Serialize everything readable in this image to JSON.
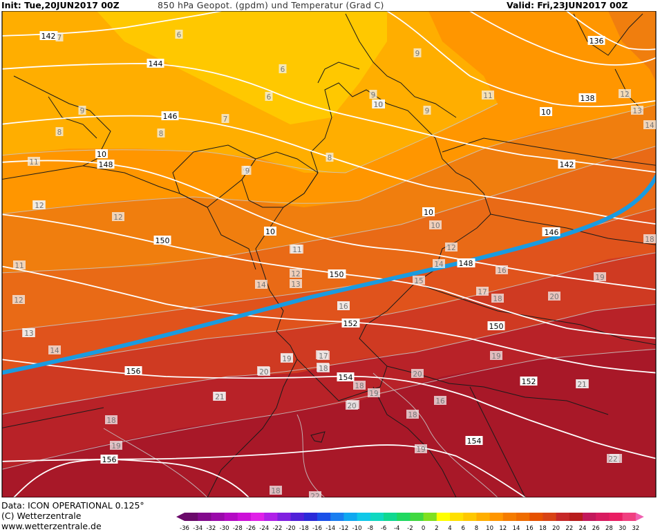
{
  "header": {
    "init": "Init: Tue,20JUN2017 00Z",
    "title": "850 hPa Geopot. (gpdm) und Temperatur (Grad C)",
    "valid": "Valid: Fri,23JUN2017 00Z"
  },
  "footer": {
    "data_line": "Data: ICON OPERATIONAL 0.125°",
    "copyright": "(C) Wetterzentrale",
    "url": "www.wetterzentrale.de"
  },
  "colorbar": {
    "ticks": [
      "-36",
      "-34",
      "-32",
      "-30",
      "-28",
      "-26",
      "-24",
      "-22",
      "-20",
      "-18",
      "-16",
      "-14",
      "-12",
      "-10",
      "-8",
      "-6",
      "-4",
      "-2",
      "0",
      "2",
      "4",
      "6",
      "8",
      "10",
      "12",
      "14",
      "16",
      "18",
      "20",
      "22",
      "24",
      "26",
      "28",
      "30",
      "32"
    ],
    "colors": [
      "#6a0a6a",
      "#820a8c",
      "#9a0aaa",
      "#b40ac4",
      "#cc10d8",
      "#e020e8",
      "#b020e8",
      "#8020e0",
      "#5020d8",
      "#2a2ad8",
      "#1a50e8",
      "#1a7ef0",
      "#10a8f0",
      "#10c8e8",
      "#10d8c0",
      "#10d890",
      "#20d860",
      "#40d840",
      "#80e020",
      "#ffff00",
      "#ffe000",
      "#ffc800",
      "#ffae00",
      "#ff9600",
      "#f57c00",
      "#ef6c00",
      "#e65100",
      "#d84315",
      "#c62828",
      "#b71c1c",
      "#c2185b",
      "#d81b60",
      "#e91e63",
      "#f04080",
      "#f060b0"
    ]
  },
  "map": {
    "field_colors": {
      "t6": "#ffc800",
      "t8": "#ffae00",
      "t10": "#ff9600",
      "t12": "#f07e0e",
      "t14": "#e96a16",
      "t16": "#e0531c",
      "t18": "#cf3a22",
      "t20": "#b82228",
      "t22": "#a81828"
    },
    "front_color": "#1a9be0",
    "geopotential_labels": [
      "142",
      "144",
      "146",
      "148",
      "150",
      "152",
      "154",
      "156",
      "142",
      "146",
      "148",
      "150",
      "152",
      "154",
      "156",
      "10",
      "10",
      "10",
      "10",
      "138",
      "136",
      "10",
      "142",
      "146",
      "148",
      "150",
      "152",
      "154"
    ],
    "temperature_labels": [
      "7",
      "6",
      "6",
      "6",
      "8",
      "7",
      "8",
      "9",
      "9",
      "9",
      "9",
      "8",
      "11",
      "12",
      "12",
      "11",
      "12",
      "13",
      "14",
      "10",
      "11",
      "12",
      "14",
      "15",
      "16",
      "17",
      "18",
      "19",
      "20",
      "21",
      "18",
      "19",
      "20",
      "21",
      "18",
      "19",
      "16",
      "17",
      "18",
      "19",
      "20",
      "21",
      "18",
      "11",
      "12",
      "13",
      "14",
      "16",
      "18",
      "19",
      "20",
      "21",
      "22",
      "9",
      "10",
      "11",
      "12",
      "13",
      "14",
      "16",
      "17",
      "18",
      "19",
      "20",
      "21",
      "18",
      "19",
      "20",
      "22",
      "13",
      "12",
      "9"
    ]
  }
}
